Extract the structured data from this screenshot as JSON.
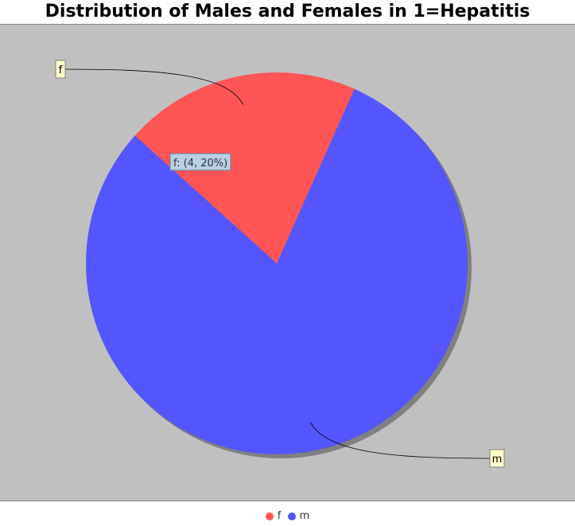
{
  "chart_data": {
    "type": "pie",
    "title": "Distribution of Males and Females in 1=Hepatitis",
    "slices": [
      {
        "label": "f",
        "value": 4,
        "color": "#ff5555"
      },
      {
        "label": "m",
        "value": 16,
        "color": "#5555ff"
      }
    ],
    "tooltip": "f: (4, 20%)",
    "legend": {
      "position": "bottom",
      "entries": [
        "f",
        "m"
      ]
    },
    "background": "#c0c0c0"
  }
}
